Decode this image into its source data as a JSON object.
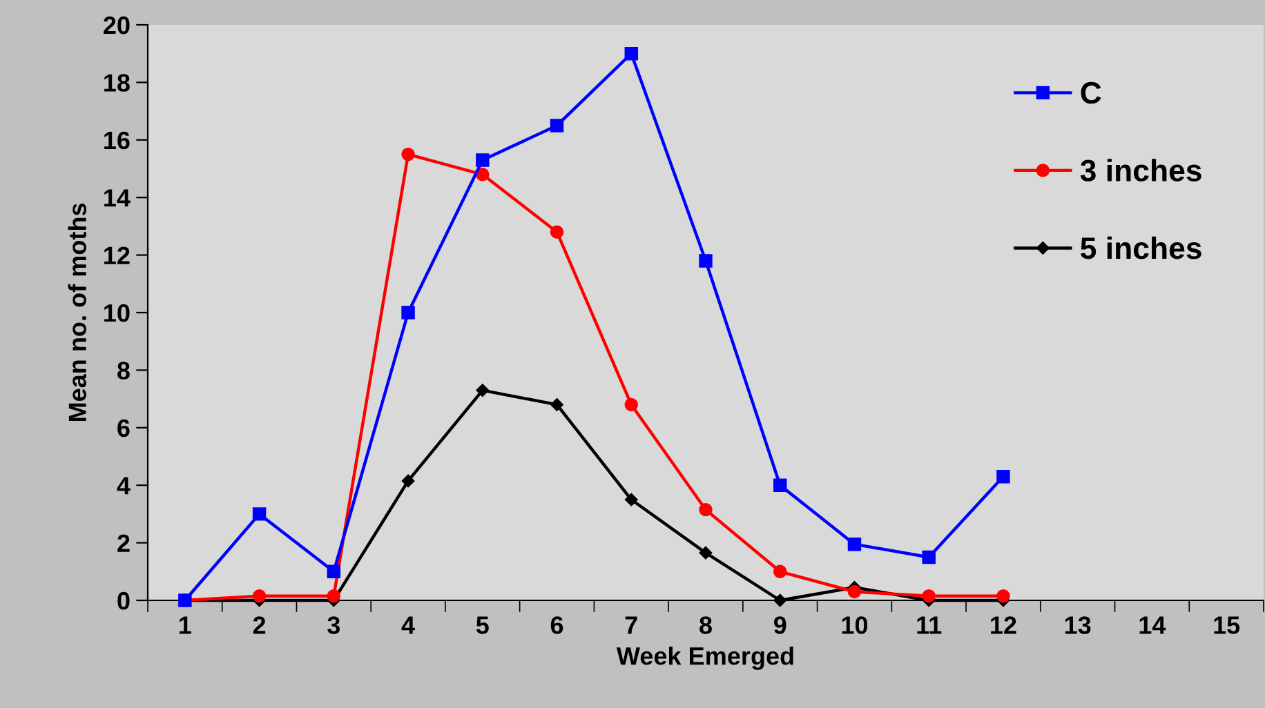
{
  "chart_data": {
    "type": "line",
    "xlabel": "Week Emerged",
    "ylabel": "Mean no. of moths",
    "categories": [
      "1",
      "2",
      "3",
      "4",
      "5",
      "6",
      "7",
      "8",
      "9",
      "10",
      "11",
      "12",
      "13",
      "14",
      "15"
    ],
    "series": [
      {
        "name": "C",
        "color": "#0000ff",
        "marker": "square",
        "values": [
          0,
          3,
          1,
          10,
          15.3,
          16.5,
          19,
          11.8,
          4,
          1.95,
          1.5,
          4.3,
          null,
          null,
          null
        ]
      },
      {
        "name": "3 inches",
        "color": "#ff0000",
        "marker": "circle",
        "values": [
          0,
          0.15,
          0.15,
          15.5,
          14.8,
          12.8,
          6.8,
          3.15,
          1,
          0.3,
          0.15,
          0.15,
          null,
          null,
          null
        ]
      },
      {
        "name": "5 inches",
        "color": "#000000",
        "marker": "diamond",
        "values": [
          0,
          0,
          0,
          4.15,
          7.3,
          6.8,
          3.5,
          1.65,
          0,
          0.45,
          0,
          0,
          null,
          null,
          null
        ]
      }
    ],
    "ylim": [
      0,
      20
    ],
    "yticks": [
      0,
      2,
      4,
      6,
      8,
      10,
      12,
      14,
      16,
      18,
      20
    ],
    "grid": false,
    "legend": "top right"
  }
}
